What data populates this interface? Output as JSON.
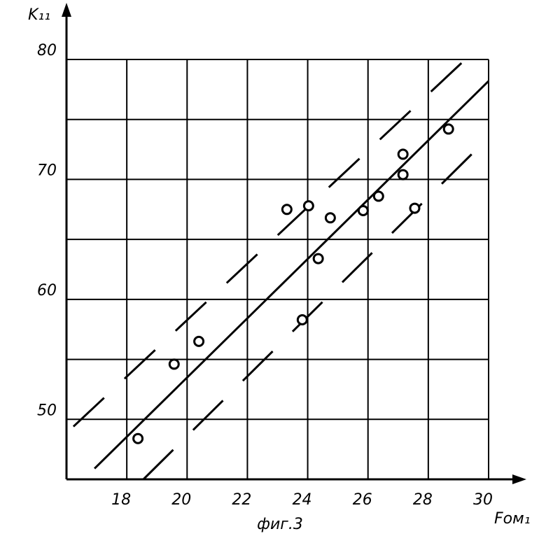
{
  "chart_data": {
    "type": "scatter",
    "ylabel": "K₁₁",
    "xlabel": "Fом₁",
    "caption": "фиг.3",
    "x": [
      18.37,
      19.57,
      20.39,
      23.31,
      24.03,
      24.75,
      24.35,
      23.82,
      25.84,
      26.35,
      27.16,
      27.16,
      27.55,
      28.67
    ],
    "values": [
      48.4,
      54.6,
      56.5,
      67.5,
      67.8,
      66.8,
      63.4,
      58.3,
      67.4,
      68.6,
      72.1,
      70.4,
      67.6,
      74.2
    ],
    "color": "#000000",
    "lines": [
      {
        "x": [
          16.93,
          30
        ],
        "values": [
          45.9,
          78.2
        ],
        "dashed": false
      },
      {
        "x": [
          16.23,
          29.1
        ],
        "values": [
          49.4,
          79.7
        ],
        "dashed": true
      },
      {
        "x": [
          18.55,
          30
        ],
        "values": [
          45.0,
          73.5
        ],
        "dashed": true
      }
    ],
    "xlim": [
      16,
      30
    ],
    "ylim": [
      45,
      80
    ],
    "xticks": [
      18,
      20,
      22,
      24,
      26,
      28,
      30
    ],
    "yticks": [
      50,
      60,
      70,
      80
    ],
    "yminor": [
      55,
      65,
      75
    ],
    "grid": true
  }
}
